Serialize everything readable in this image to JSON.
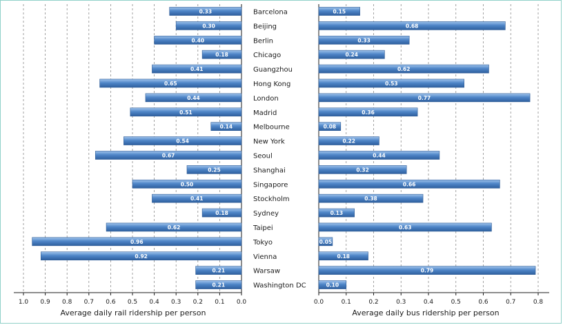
{
  "chart_data": [
    {
      "type": "bar",
      "orientation": "horizontal",
      "xlabel": "Average daily rail ridership per person",
      "xlim": [
        1.0,
        0.0
      ],
      "x_reversed": true,
      "grid": true,
      "ticks": [
        "1.0",
        "0.9",
        "0.8",
        "0.7",
        "0.6",
        "0.5",
        "0.4",
        "0.3",
        "0.2",
        "0.1",
        "0.0"
      ],
      "categories": [
        "Barcelona",
        "Beijing",
        "Berlin",
        "Chicago",
        "Guangzhou",
        "Hong Kong",
        "London",
        "Madrid",
        "Melbourne",
        "New York",
        "Seoul",
        "Shanghai",
        "Singapore",
        "Stockholm",
        "Sydney",
        "Taipei",
        "Tokyo",
        "Vienna",
        "Warsaw",
        "Washington DC"
      ],
      "values": [
        0.33,
        0.3,
        0.4,
        0.18,
        0.41,
        0.65,
        0.44,
        0.51,
        0.14,
        0.54,
        0.67,
        0.25,
        0.5,
        0.41,
        0.18,
        0.62,
        0.96,
        0.92,
        0.21,
        0.21
      ],
      "labels": [
        "0.33",
        "0.30",
        "0.40",
        "0.18",
        "0.41",
        "0.65",
        "0.44",
        "0.51",
        "0.14",
        "0.54",
        "0.67",
        "0.25",
        "0.50",
        "0.41",
        "0.18",
        "0.62",
        "0.96",
        "0.92",
        "0.21",
        "0.21"
      ],
      "color": "#4a7fc1"
    },
    {
      "type": "bar",
      "orientation": "horizontal",
      "xlabel": "Average daily bus ridership per person",
      "xlim": [
        0.0,
        0.8
      ],
      "grid": true,
      "ticks": [
        "0.0",
        "0.1",
        "0.2",
        "0.3",
        "0.4",
        "0.5",
        "0.6",
        "0.7",
        "0.8"
      ],
      "categories": [
        "Barcelona",
        "Beijing",
        "Berlin",
        "Chicago",
        "Guangzhou",
        "Hong Kong",
        "London",
        "Madrid",
        "Melbourne",
        "New York",
        "Seoul",
        "Shanghai",
        "Singapore",
        "Stockholm",
        "Sydney",
        "Taipei",
        "Tokyo",
        "Vienna",
        "Warsaw",
        "Washington DC"
      ],
      "values": [
        0.15,
        0.68,
        0.33,
        0.24,
        0.62,
        0.53,
        0.77,
        0.36,
        0.08,
        0.22,
        0.44,
        0.32,
        0.66,
        0.38,
        0.13,
        0.63,
        0.05,
        0.18,
        0.79,
        0.1
      ],
      "labels": [
        "0.15",
        "0.68",
        "0.33",
        "0.24",
        "0.62",
        "0.53",
        "0.77",
        "0.36",
        "0.08",
        "0.22",
        "0.44",
        "0.32",
        "0.66",
        "0.38",
        "0.13",
        "0.63",
        "0.05",
        "0.18",
        "0.79",
        "0.10"
      ],
      "color": "#4a7fc1"
    }
  ]
}
